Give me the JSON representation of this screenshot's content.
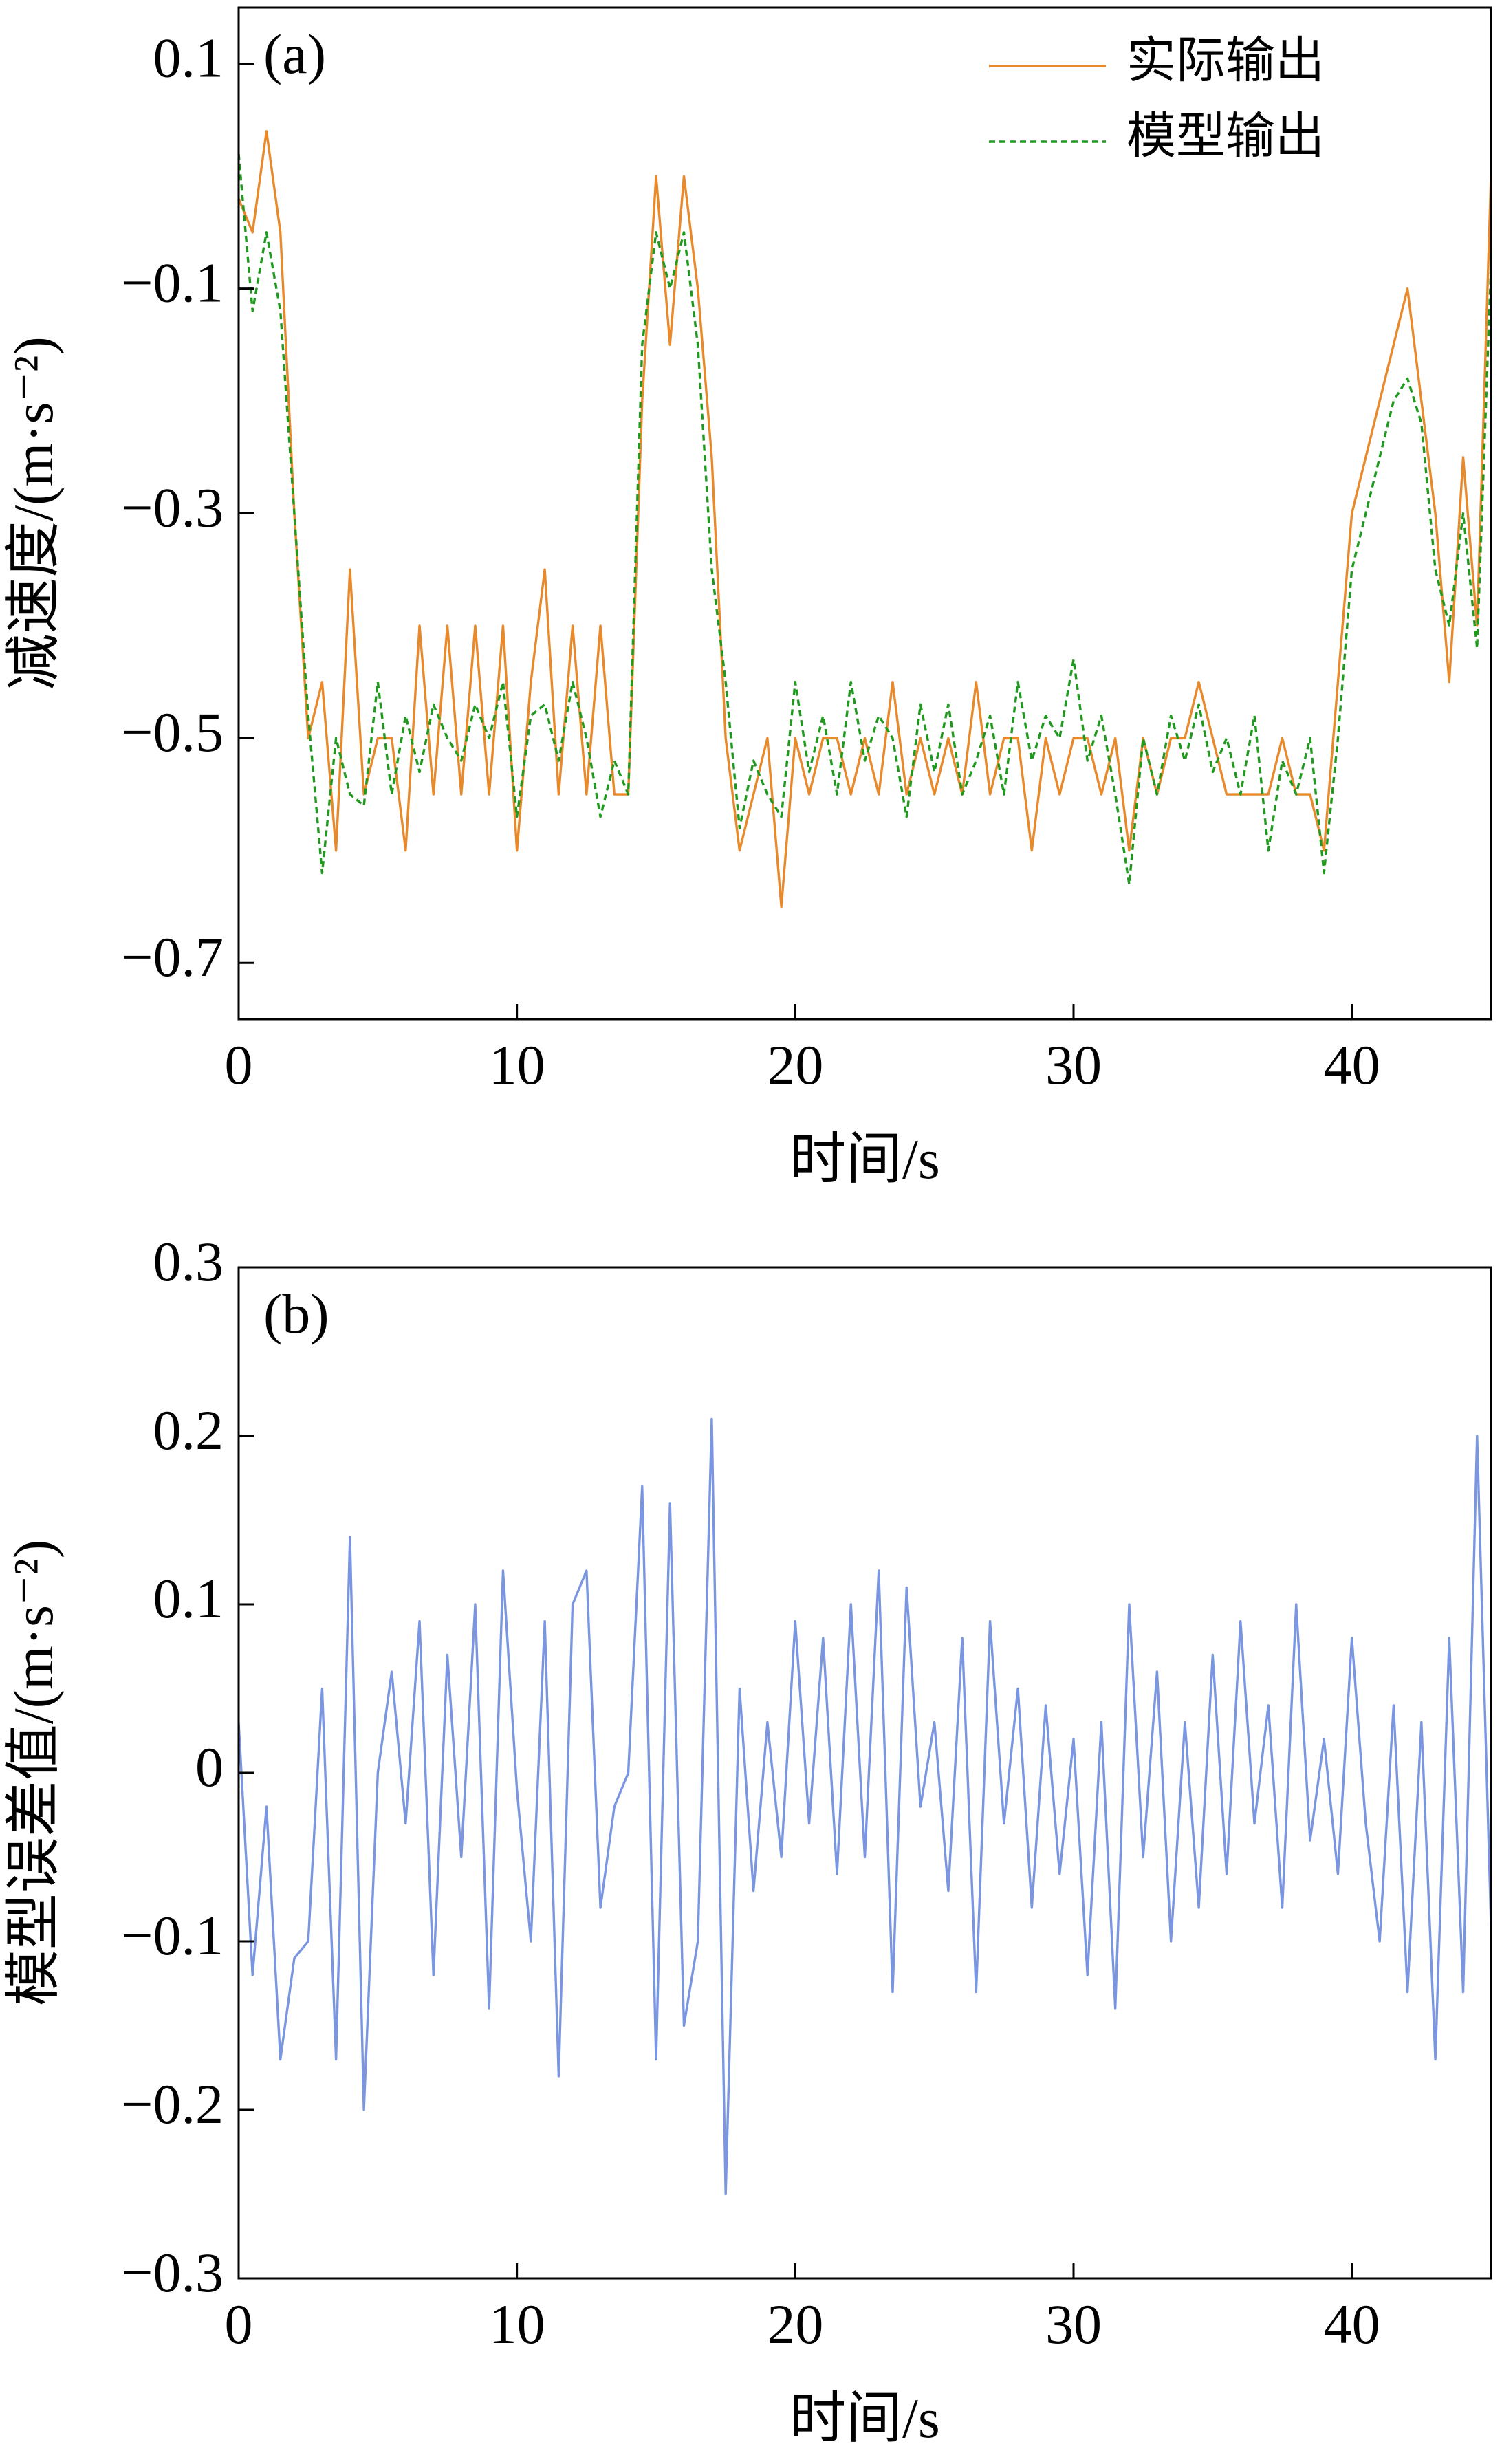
{
  "chart_data": [
    {
      "type": "line",
      "annotation": "(a)",
      "xlabel": "时间/s",
      "ylabel": "减速度/(m·s⁻²)",
      "x": [
        0,
        0.5,
        1,
        1.5,
        2,
        2.5,
        3,
        3.5,
        4,
        4.5,
        5,
        5.5,
        6,
        6.5,
        7,
        7.5,
        8,
        8.5,
        9,
        9.5,
        10,
        10.5,
        11,
        11.5,
        12,
        12.5,
        13,
        13.5,
        14,
        14.5,
        15,
        15.5,
        16,
        16.5,
        17,
        17.5,
        18,
        18.5,
        19,
        19.5,
        20,
        20.5,
        21,
        21.5,
        22,
        22.5,
        23,
        23.5,
        24,
        24.5,
        25,
        25.5,
        26,
        26.5,
        27,
        27.5,
        28,
        28.5,
        29,
        29.5,
        30,
        30.5,
        31,
        31.5,
        32,
        32.5,
        33,
        33.5,
        34,
        34.5,
        35,
        35.5,
        36,
        36.5,
        37,
        37.5,
        38,
        38.5,
        39,
        39.5,
        40,
        40.5,
        41,
        41.5,
        42,
        42.5,
        43,
        43.5,
        44,
        44.5,
        45
      ],
      "series": [
        {
          "name": "实际输出",
          "color": "#e8892c",
          "dashed": false,
          "values": [
            -0.02,
            -0.05,
            0.04,
            -0.05,
            -0.3,
            -0.5,
            -0.45,
            -0.6,
            -0.35,
            -0.55,
            -0.5,
            -0.5,
            -0.6,
            -0.4,
            -0.55,
            -0.4,
            -0.55,
            -0.4,
            -0.55,
            -0.4,
            -0.6,
            -0.45,
            -0.35,
            -0.55,
            -0.4,
            -0.55,
            -0.4,
            -0.55,
            -0.55,
            -0.2,
            0,
            -0.15,
            0,
            -0.1,
            -0.25,
            -0.5,
            -0.6,
            -0.55,
            -0.5,
            -0.65,
            -0.5,
            -0.55,
            -0.5,
            -0.5,
            -0.55,
            -0.5,
            -0.55,
            -0.45,
            -0.55,
            -0.5,
            -0.55,
            -0.5,
            -0.55,
            -0.45,
            -0.55,
            -0.5,
            -0.5,
            -0.6,
            -0.5,
            -0.55,
            -0.5,
            -0.5,
            -0.55,
            -0.5,
            -0.6,
            -0.5,
            -0.55,
            -0.5,
            -0.5,
            -0.45,
            -0.5,
            -0.55,
            -0.55,
            -0.55,
            -0.55,
            -0.5,
            -0.55,
            -0.55,
            -0.6,
            -0.45,
            -0.3,
            -0.25,
            -0.2,
            -0.15,
            -0.1,
            -0.2,
            -0.3,
            -0.45,
            -0.25,
            -0.4,
            0
          ]
        },
        {
          "name": "模型输出",
          "color": "#1f9a1f",
          "dashed": true,
          "values": [
            0.02,
            -0.12,
            -0.05,
            -0.12,
            -0.3,
            -0.48,
            -0.62,
            -0.5,
            -0.55,
            -0.56,
            -0.45,
            -0.55,
            -0.48,
            -0.53,
            -0.47,
            -0.5,
            -0.52,
            -0.47,
            -0.5,
            -0.45,
            -0.57,
            -0.48,
            -0.47,
            -0.52,
            -0.45,
            -0.5,
            -0.57,
            -0.52,
            -0.55,
            -0.15,
            -0.05,
            -0.1,
            -0.05,
            -0.15,
            -0.35,
            -0.45,
            -0.58,
            -0.52,
            -0.55,
            -0.57,
            -0.45,
            -0.53,
            -0.48,
            -0.55,
            -0.45,
            -0.52,
            -0.48,
            -0.5,
            -0.57,
            -0.47,
            -0.53,
            -0.47,
            -0.55,
            -0.52,
            -0.48,
            -0.55,
            -0.45,
            -0.52,
            -0.48,
            -0.5,
            -0.43,
            -0.52,
            -0.48,
            -0.55,
            -0.63,
            -0.5,
            -0.55,
            -0.48,
            -0.52,
            -0.47,
            -0.53,
            -0.5,
            -0.55,
            -0.48,
            -0.6,
            -0.52,
            -0.55,
            -0.5,
            -0.62,
            -0.5,
            -0.35,
            -0.3,
            -0.25,
            -0.2,
            -0.18,
            -0.22,
            -0.35,
            -0.4,
            -0.3,
            -0.42,
            -0.08
          ]
        }
      ],
      "xlim": [
        0,
        45
      ],
      "xticks": [
        0,
        10,
        20,
        30,
        40
      ],
      "ylim": [
        -0.75,
        0.15
      ],
      "yticks": [
        {
          "value": -0.7,
          "label": "−0.7"
        },
        {
          "value": -0.5,
          "label": "−0.5"
        },
        {
          "value": -0.3,
          "label": "−0.3"
        },
        {
          "value": -0.1,
          "label": "−0.1"
        },
        0.1
      ],
      "legend": "upper right"
    },
    {
      "type": "line",
      "annotation": "(b)",
      "xlabel": "时间/s",
      "ylabel": "模型误差值/(m·s⁻²)",
      "x": [
        0,
        0.5,
        1,
        1.5,
        2,
        2.5,
        3,
        3.5,
        4,
        4.5,
        5,
        5.5,
        6,
        6.5,
        7,
        7.5,
        8,
        8.5,
        9,
        9.5,
        10,
        10.5,
        11,
        11.5,
        12,
        12.5,
        13,
        13.5,
        14,
        14.5,
        15,
        15.5,
        16,
        16.5,
        17,
        17.5,
        18,
        18.5,
        19,
        19.5,
        20,
        20.5,
        21,
        21.5,
        22,
        22.5,
        23,
        23.5,
        24,
        24.5,
        25,
        25.5,
        26,
        26.5,
        27,
        27.5,
        28,
        28.5,
        29,
        29.5,
        30,
        30.5,
        31,
        31.5,
        32,
        32.5,
        33,
        33.5,
        34,
        34.5,
        35,
        35.5,
        36,
        36.5,
        37,
        37.5,
        38,
        38.5,
        39,
        39.5,
        40,
        40.5,
        41,
        41.5,
        42,
        42.5,
        43,
        43.5,
        44,
        44.5,
        45
      ],
      "series": [
        {
          "color": "#7b96e0",
          "dashed": false,
          "values": [
            0.03,
            -0.12,
            -0.02,
            -0.17,
            -0.11,
            -0.1,
            0.05,
            -0.17,
            0.14,
            -0.2,
            0,
            0.06,
            -0.03,
            0.09,
            -0.12,
            0.07,
            -0.05,
            0.1,
            -0.14,
            0.12,
            -0.01,
            -0.1,
            0.09,
            -0.18,
            0.1,
            0.12,
            -0.08,
            -0.02,
            0,
            0.17,
            -0.17,
            0.16,
            -0.15,
            -0.1,
            0.21,
            -0.25,
            0.05,
            -0.07,
            0.03,
            -0.05,
            0.09,
            -0.03,
            0.08,
            -0.06,
            0.1,
            -0.05,
            0.12,
            -0.13,
            0.11,
            -0.02,
            0.03,
            -0.07,
            0.08,
            -0.13,
            0.09,
            -0.03,
            0.05,
            -0.08,
            0.04,
            -0.06,
            0.02,
            -0.12,
            0.03,
            -0.14,
            0.1,
            -0.05,
            0.06,
            -0.1,
            0.03,
            -0.08,
            0.07,
            -0.06,
            0.09,
            -0.03,
            0.04,
            -0.08,
            0.1,
            -0.04,
            0.02,
            -0.06,
            0.08,
            -0.03,
            -0.1,
            0.04,
            -0.13,
            0.03,
            -0.17,
            0.08,
            -0.13,
            0.2,
            -0.09
          ]
        }
      ],
      "xlim": [
        0,
        45
      ],
      "xticks": [
        0,
        10,
        20,
        30,
        40
      ],
      "ylim": [
        -0.3,
        0.3
      ],
      "yticks": [
        {
          "value": -0.3,
          "label": "−0.3"
        },
        {
          "value": -0.2,
          "label": "−0.2"
        },
        {
          "value": -0.1,
          "label": "−0.1"
        },
        0,
        0.1,
        0.2,
        0.3
      ]
    }
  ]
}
